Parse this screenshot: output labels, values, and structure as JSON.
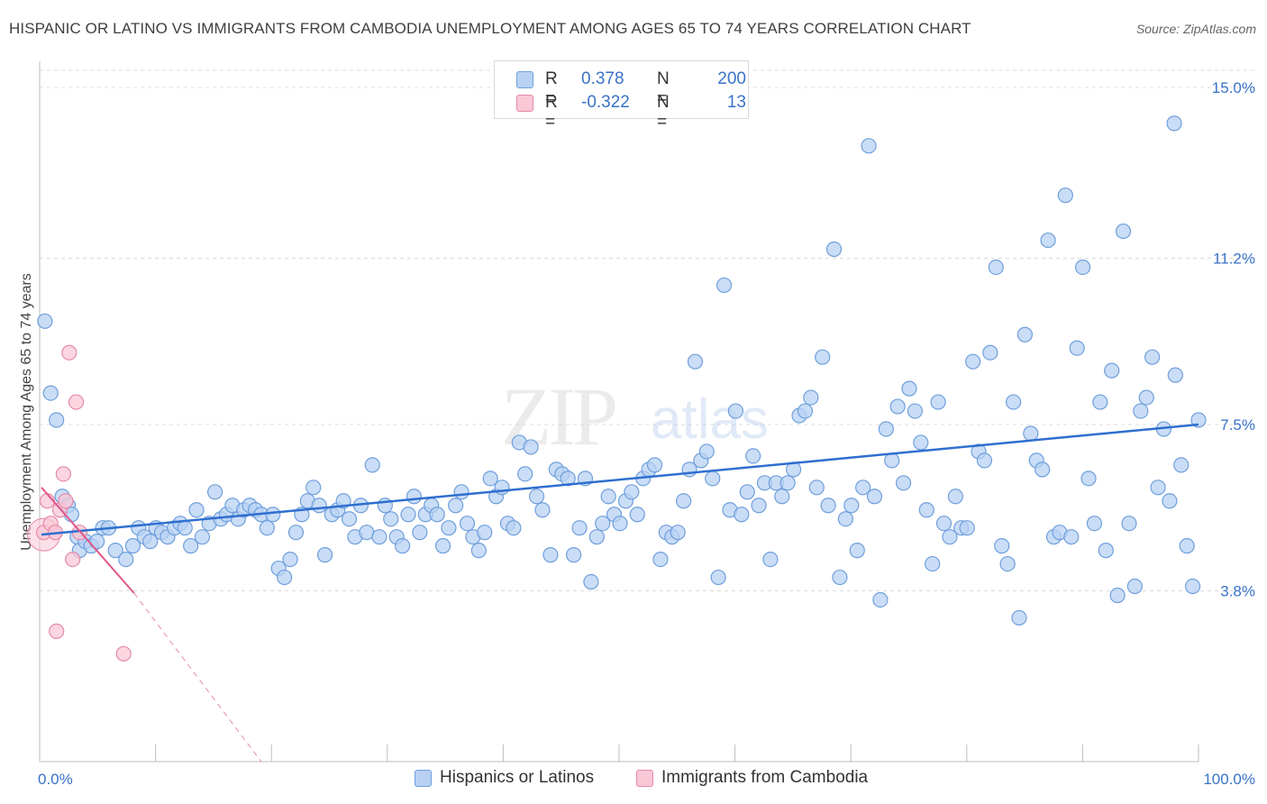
{
  "title": "HISPANIC OR LATINO VS IMMIGRANTS FROM CAMBODIA UNEMPLOYMENT AMONG AGES 65 TO 74 YEARS CORRELATION CHART",
  "source": "Source: ZipAtlas.com",
  "watermark": {
    "zip": "ZIP",
    "atlas": "atlas"
  },
  "legend": {
    "rows": [
      {
        "r_label": "R =",
        "r_value": "0.378",
        "n_label": "N =",
        "n_value": "200"
      },
      {
        "r_label": "R =",
        "r_value": "-0.322",
        "n_label": "N =",
        "n_value": "13"
      }
    ]
  },
  "bottom_legend": {
    "blue": "Hispanics or Latinos",
    "pink": "Immigrants from Cambodia"
  },
  "colors": {
    "blue_fill": "#b8d1f3",
    "blue_stroke": "#6f9fdc",
    "blue_line": "#2f6fcf",
    "pink_fill": "#f9c7d5",
    "pink_stroke": "#e48aa8",
    "pink_line": "#e0578a",
    "tick_text": "#3a72c8"
  },
  "chart_data": {
    "type": "scatter",
    "title": "HISPANIC OR LATINO VS IMMIGRANTS FROM CAMBODIA UNEMPLOYMENT AMONG AGES 65 TO 74 YEARS CORRELATION CHART",
    "xlabel": "",
    "ylabel": "Unemployment Among Ages 65 to 74 years",
    "xlim": [
      0,
      100
    ],
    "ylim": [
      0,
      15.5
    ],
    "x_tick_labels": [
      "0.0%",
      "100.0%"
    ],
    "y_ticks": [
      3.8,
      7.5,
      11.2,
      15.0
    ],
    "y_tick_labels": [
      "3.8%",
      "7.5%",
      "11.2%",
      "15.0%"
    ],
    "series": [
      {
        "name": "Hispanics or Latinos",
        "color": "blue",
        "trend": {
          "x": [
            0,
            100
          ],
          "y": [
            5.05,
            7.5
          ]
        },
        "points": [
          [
            0.3,
            9.8
          ],
          [
            0.8,
            8.2
          ],
          [
            1.3,
            7.6
          ],
          [
            1.8,
            5.9
          ],
          [
            2.3,
            5.7
          ],
          [
            2.6,
            5.5
          ],
          [
            3.1,
            5.0
          ],
          [
            3.3,
            4.7
          ],
          [
            3.8,
            4.9
          ],
          [
            4.3,
            4.8
          ],
          [
            4.8,
            4.9
          ],
          [
            5.3,
            5.2
          ],
          [
            5.8,
            5.2
          ],
          [
            6.4,
            4.7
          ],
          [
            7.3,
            4.5
          ],
          [
            7.9,
            4.8
          ],
          [
            8.4,
            5.2
          ],
          [
            8.9,
            5.0
          ],
          [
            9.4,
            4.9
          ],
          [
            9.9,
            5.2
          ],
          [
            10.4,
            5.1
          ],
          [
            10.9,
            5.0
          ],
          [
            11.5,
            5.2
          ],
          [
            12.0,
            5.3
          ],
          [
            12.4,
            5.2
          ],
          [
            12.9,
            4.8
          ],
          [
            13.4,
            5.6
          ],
          [
            13.9,
            5.0
          ],
          [
            14.5,
            5.3
          ],
          [
            15.0,
            6.0
          ],
          [
            15.5,
            5.4
          ],
          [
            16.0,
            5.5
          ],
          [
            16.5,
            5.7
          ],
          [
            17.0,
            5.4
          ],
          [
            17.5,
            5.6
          ],
          [
            18.0,
            5.7
          ],
          [
            18.5,
            5.6
          ],
          [
            19.0,
            5.5
          ],
          [
            19.5,
            5.2
          ],
          [
            20.0,
            5.5
          ],
          [
            20.5,
            4.3
          ],
          [
            21.0,
            4.1
          ],
          [
            21.5,
            4.5
          ],
          [
            22.0,
            5.1
          ],
          [
            22.5,
            5.5
          ],
          [
            23.0,
            5.8
          ],
          [
            23.5,
            6.1
          ],
          [
            24.0,
            5.7
          ],
          [
            24.5,
            4.6
          ],
          [
            25.1,
            5.5
          ],
          [
            25.6,
            5.6
          ],
          [
            26.1,
            5.8
          ],
          [
            26.6,
            5.4
          ],
          [
            27.1,
            5.0
          ],
          [
            27.6,
            5.7
          ],
          [
            28.1,
            5.1
          ],
          [
            28.6,
            6.6
          ],
          [
            29.2,
            5.0
          ],
          [
            29.7,
            5.7
          ],
          [
            30.2,
            5.4
          ],
          [
            30.7,
            5.0
          ],
          [
            31.2,
            4.8
          ],
          [
            31.7,
            5.5
          ],
          [
            32.2,
            5.9
          ],
          [
            32.7,
            5.1
          ],
          [
            33.2,
            5.5
          ],
          [
            33.7,
            5.7
          ],
          [
            34.2,
            5.5
          ],
          [
            34.7,
            4.8
          ],
          [
            35.2,
            5.2
          ],
          [
            35.8,
            5.7
          ],
          [
            36.3,
            6.0
          ],
          [
            36.8,
            5.3
          ],
          [
            37.3,
            5.0
          ],
          [
            37.8,
            4.7
          ],
          [
            38.3,
            5.1
          ],
          [
            38.8,
            6.3
          ],
          [
            39.3,
            5.9
          ],
          [
            39.8,
            6.1
          ],
          [
            40.3,
            5.3
          ],
          [
            40.8,
            5.2
          ],
          [
            41.3,
            7.1
          ],
          [
            41.8,
            6.4
          ],
          [
            42.3,
            7.0
          ],
          [
            42.8,
            5.9
          ],
          [
            43.3,
            5.6
          ],
          [
            44.0,
            4.6
          ],
          [
            44.5,
            6.5
          ],
          [
            45.0,
            6.4
          ],
          [
            45.5,
            6.3
          ],
          [
            46.0,
            4.6
          ],
          [
            46.5,
            5.2
          ],
          [
            47.0,
            6.3
          ],
          [
            47.5,
            4.0
          ],
          [
            48.0,
            5.0
          ],
          [
            48.5,
            5.3
          ],
          [
            49.0,
            5.9
          ],
          [
            49.5,
            5.5
          ],
          [
            50.0,
            5.3
          ],
          [
            50.5,
            5.8
          ],
          [
            51.0,
            6.0
          ],
          [
            51.5,
            5.5
          ],
          [
            52.0,
            6.3
          ],
          [
            52.5,
            6.5
          ],
          [
            53.0,
            6.6
          ],
          [
            53.5,
            4.5
          ],
          [
            54.0,
            5.1
          ],
          [
            54.5,
            5.0
          ],
          [
            55.0,
            5.1
          ],
          [
            55.5,
            5.8
          ],
          [
            56.0,
            6.5
          ],
          [
            56.5,
            8.9
          ],
          [
            57.0,
            6.7
          ],
          [
            57.5,
            6.9
          ],
          [
            58.0,
            6.3
          ],
          [
            58.5,
            4.1
          ],
          [
            59.0,
            10.6
          ],
          [
            59.5,
            5.6
          ],
          [
            60.0,
            7.8
          ],
          [
            60.5,
            5.5
          ],
          [
            61.0,
            6.0
          ],
          [
            61.5,
            6.8
          ],
          [
            62.0,
            5.7
          ],
          [
            62.5,
            6.2
          ],
          [
            63.0,
            4.5
          ],
          [
            63.5,
            6.2
          ],
          [
            64.0,
            5.9
          ],
          [
            64.5,
            6.2
          ],
          [
            65.0,
            6.5
          ],
          [
            65.5,
            7.7
          ],
          [
            66.0,
            7.8
          ],
          [
            66.5,
            8.1
          ],
          [
            67.0,
            6.1
          ],
          [
            67.5,
            9.0
          ],
          [
            68.0,
            5.7
          ],
          [
            68.5,
            11.4
          ],
          [
            69.0,
            4.1
          ],
          [
            69.5,
            5.4
          ],
          [
            70.0,
            5.7
          ],
          [
            70.5,
            4.7
          ],
          [
            71.0,
            6.1
          ],
          [
            71.5,
            13.7
          ],
          [
            72.0,
            5.9
          ],
          [
            72.5,
            3.6
          ],
          [
            73.0,
            7.4
          ],
          [
            73.5,
            6.7
          ],
          [
            74.0,
            7.9
          ],
          [
            74.5,
            6.2
          ],
          [
            75.0,
            8.3
          ],
          [
            75.5,
            7.8
          ],
          [
            76.0,
            7.1
          ],
          [
            76.5,
            5.6
          ],
          [
            77.0,
            4.4
          ],
          [
            77.5,
            8.0
          ],
          [
            78.0,
            5.3
          ],
          [
            78.5,
            5.0
          ],
          [
            79.0,
            5.9
          ],
          [
            79.5,
            5.2
          ],
          [
            80.0,
            5.2
          ],
          [
            80.5,
            8.9
          ],
          [
            81.0,
            6.9
          ],
          [
            81.5,
            6.7
          ],
          [
            82.0,
            9.1
          ],
          [
            82.5,
            11.0
          ],
          [
            83.0,
            4.8
          ],
          [
            83.5,
            4.4
          ],
          [
            84.0,
            8.0
          ],
          [
            84.5,
            3.2
          ],
          [
            85.0,
            9.5
          ],
          [
            85.5,
            7.3
          ],
          [
            86.0,
            6.7
          ],
          [
            86.5,
            6.5
          ],
          [
            87.0,
            11.6
          ],
          [
            87.5,
            5.0
          ],
          [
            88.0,
            5.1
          ],
          [
            88.5,
            12.6
          ],
          [
            89.0,
            5.0
          ],
          [
            89.5,
            9.2
          ],
          [
            90.0,
            11.0
          ],
          [
            90.5,
            6.3
          ],
          [
            91.0,
            5.3
          ],
          [
            91.5,
            8.0
          ],
          [
            92.0,
            4.7
          ],
          [
            92.5,
            8.7
          ],
          [
            93.0,
            3.7
          ],
          [
            93.5,
            11.8
          ],
          [
            94.0,
            5.3
          ],
          [
            94.5,
            3.9
          ],
          [
            95.0,
            7.8
          ],
          [
            95.5,
            8.1
          ],
          [
            96.0,
            9.0
          ],
          [
            96.5,
            6.1
          ],
          [
            97.0,
            7.4
          ],
          [
            97.5,
            5.8
          ],
          [
            98.0,
            8.6
          ],
          [
            98.5,
            6.6
          ],
          [
            99.0,
            4.8
          ],
          [
            99.5,
            3.9
          ],
          [
            100.0,
            7.6
          ],
          [
            97.9,
            14.2
          ]
        ]
      },
      {
        "name": "Immigrants from Cambodia",
        "color": "pink",
        "trend": {
          "x": [
            0,
            8.0
          ],
          "y": [
            6.1,
            3.75
          ]
        },
        "trend_dashed": {
          "x": [
            8.0,
            19.0
          ],
          "y": [
            3.75,
            0.0
          ]
        },
        "points": [
          [
            0.2,
            5.1
          ],
          [
            0.5,
            5.8
          ],
          [
            0.8,
            5.3
          ],
          [
            1.2,
            5.1
          ],
          [
            1.6,
            5.6
          ],
          [
            1.9,
            6.4
          ],
          [
            2.1,
            5.8
          ],
          [
            2.4,
            9.1
          ],
          [
            2.7,
            4.5
          ],
          [
            3.0,
            8.0
          ],
          [
            3.3,
            5.1
          ],
          [
            1.3,
            2.9
          ],
          [
            7.1,
            2.4
          ]
        ]
      }
    ]
  }
}
